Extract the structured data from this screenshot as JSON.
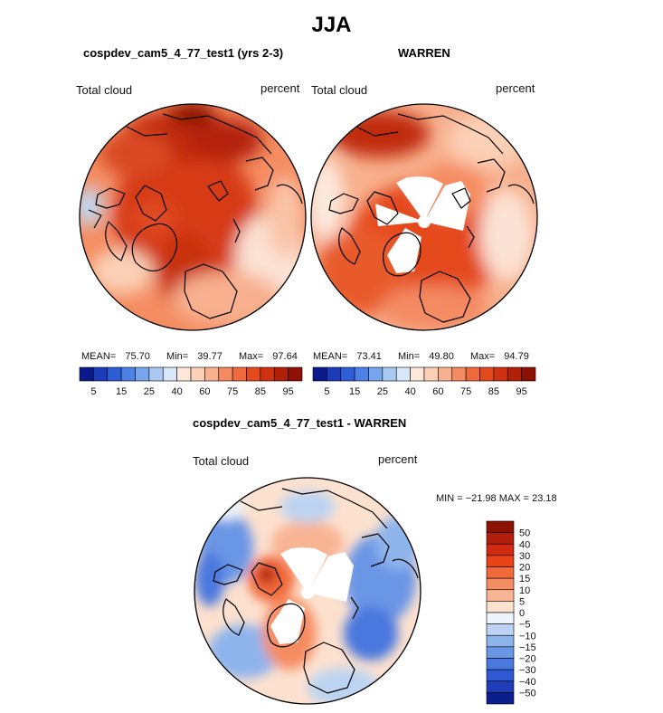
{
  "page": {
    "title": "JJA"
  },
  "chart_data": [
    {
      "type": "heatmap",
      "projection": "north-polar-stereographic",
      "title": "cospdev_cam5_4_77_test1 (yrs 2-3)",
      "field_label": "Total cloud",
      "units_label": "percent",
      "stats": {
        "mean_label": "MEAN=",
        "mean": "75.70",
        "min_label": "Min=",
        "min": "39.77",
        "max_label": "Max=",
        "max": "97.64"
      },
      "colorbar": {
        "orientation": "horizontal",
        "tick_labels": [
          "5",
          "15",
          "25",
          "40",
          "60",
          "75",
          "85",
          "95"
        ],
        "colors": [
          "#0a1a8c",
          "#1b3bb8",
          "#2e5ed6",
          "#4c82e8",
          "#78a6ee",
          "#a9c8f2",
          "#d8e8f8",
          "#fde7d8",
          "#fbd0b6",
          "#f8b08e",
          "#f48a62",
          "#ef6a3c",
          "#e44a1e",
          "#cf3210",
          "#b02008",
          "#8e1204"
        ]
      }
    },
    {
      "type": "heatmap",
      "projection": "north-polar-stereographic",
      "title": "WARREN",
      "field_label": "Total cloud",
      "units_label": "percent",
      "stats": {
        "mean_label": "MEAN=",
        "mean": "73.41",
        "min_label": "Min=",
        "min": "49.80",
        "max_label": "Max=",
        "max": "94.79"
      },
      "colorbar": {
        "orientation": "horizontal",
        "tick_labels": [
          "5",
          "15",
          "25",
          "40",
          "60",
          "75",
          "85",
          "95"
        ],
        "colors": [
          "#0a1a8c",
          "#1b3bb8",
          "#2e5ed6",
          "#4c82e8",
          "#78a6ee",
          "#a9c8f2",
          "#d8e8f8",
          "#fde7d8",
          "#fbd0b6",
          "#f8b08e",
          "#f48a62",
          "#ef6a3c",
          "#e44a1e",
          "#cf3210",
          "#b02008",
          "#8e1204"
        ]
      }
    },
    {
      "type": "heatmap",
      "projection": "north-polar-stereographic",
      "title": "cospdev_cam5_4_77_test1 - WARREN",
      "field_label": "Total cloud",
      "units_label": "percent",
      "stats_text": "MIN = −21.98 MAX =  23.18",
      "colorbar": {
        "orientation": "vertical",
        "tick_labels": [
          "50",
          "40",
          "30",
          "20",
          "15",
          "10",
          "5",
          "0",
          "−5",
          "−10",
          "−15",
          "−20",
          "−30",
          "−40",
          "−50"
        ],
        "colors": [
          "#8e1204",
          "#b21e0a",
          "#d22a10",
          "#e84418",
          "#f26a3a",
          "#f68c62",
          "#f9b494",
          "#fde1cf",
          "#eef4fb",
          "#bcd4f2",
          "#8eb4ec",
          "#6a96e6",
          "#4a78de",
          "#3058d2",
          "#1e3cba",
          "#0c1e8c"
        ]
      }
    }
  ]
}
